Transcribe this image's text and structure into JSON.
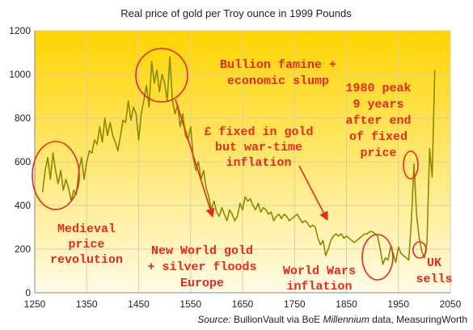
{
  "chart_data": {
    "type": "line",
    "title": "Real price of gold per Troy ounce in 1999 Pounds",
    "x": [
      1265,
      1270,
      1275,
      1280,
      1285,
      1290,
      1295,
      1300,
      1305,
      1310,
      1315,
      1320,
      1325,
      1330,
      1335,
      1340,
      1345,
      1350,
      1355,
      1360,
      1365,
      1370,
      1375,
      1380,
      1385,
      1390,
      1395,
      1400,
      1405,
      1410,
      1415,
      1420,
      1425,
      1430,
      1435,
      1440,
      1445,
      1450,
      1455,
      1460,
      1465,
      1470,
      1475,
      1480,
      1485,
      1490,
      1495,
      1500,
      1505,
      1510,
      1515,
      1520,
      1525,
      1530,
      1535,
      1540,
      1545,
      1550,
      1555,
      1560,
      1565,
      1570,
      1575,
      1580,
      1585,
      1590,
      1595,
      1600,
      1605,
      1610,
      1615,
      1620,
      1625,
      1630,
      1635,
      1640,
      1645,
      1650,
      1655,
      1660,
      1665,
      1670,
      1675,
      1680,
      1685,
      1690,
      1695,
      1700,
      1705,
      1710,
      1715,
      1720,
      1725,
      1730,
      1735,
      1740,
      1745,
      1750,
      1755,
      1760,
      1765,
      1770,
      1775,
      1780,
      1785,
      1790,
      1795,
      1800,
      1805,
      1810,
      1815,
      1820,
      1825,
      1830,
      1835,
      1840,
      1845,
      1850,
      1855,
      1860,
      1865,
      1870,
      1875,
      1880,
      1885,
      1890,
      1895,
      1900,
      1905,
      1910,
      1915,
      1920,
      1925,
      1930,
      1935,
      1940,
      1945,
      1950,
      1955,
      1960,
      1965,
      1970,
      1975,
      1980,
      1985,
      1990,
      1995,
      2000,
      2005,
      2010,
      2015,
      2020
    ],
    "series": [
      {
        "name": "Gold price",
        "color": "#8a8a00",
        "values": [
          460,
          560,
          620,
          520,
          640,
          560,
          500,
          560,
          470,
          520,
          480,
          420,
          470,
          450,
          560,
          620,
          520,
          600,
          650,
          640,
          700,
          680,
          760,
          690,
          800,
          720,
          780,
          720,
          690,
          650,
          720,
          790,
          780,
          880,
          790,
          850,
          820,
          700,
          820,
          880,
          950,
          850,
          1060,
          960,
          1020,
          920,
          1000,
          960,
          880,
          1080,
          880,
          820,
          860,
          760,
          820,
          720,
          700,
          760,
          620,
          560,
          600,
          520,
          560,
          480,
          440,
          380,
          420,
          370,
          350,
          390,
          360,
          330,
          380,
          360,
          330,
          350,
          410,
          380,
          440,
          420,
          430,
          400,
          380,
          410,
          370,
          390,
          380,
          360,
          370,
          330,
          350,
          360,
          340,
          360,
          350,
          330,
          340,
          350,
          360,
          340,
          320,
          330,
          320,
          300,
          310,
          300,
          250,
          220,
          240,
          170,
          200,
          240,
          260,
          270,
          260,
          270,
          250,
          260,
          250,
          240,
          230,
          240,
          250,
          260,
          270,
          270,
          280,
          280,
          270,
          260,
          200,
          130,
          160,
          150,
          210,
          180,
          140,
          210,
          180,
          170,
          160,
          150,
          330,
          590,
          360,
          250,
          190,
          160,
          230,
          660,
          530,
          1020
        ]
      }
    ],
    "xlim": [
      1250,
      2050
    ],
    "ylim": [
      0,
      1200
    ],
    "xticks": [
      1250,
      1350,
      1450,
      1550,
      1650,
      1750,
      1850,
      1950,
      2050
    ],
    "yticks": [
      0,
      200,
      400,
      600,
      800,
      1000,
      1200
    ],
    "grid": true,
    "annotations": [
      {
        "lines": [
          "Bullion famine +",
          "economic slump"
        ]
      },
      {
        "lines": [
          "£ fixed in gold",
          "but war-time",
          "inflation"
        ]
      },
      {
        "lines": [
          "1980 peak",
          "9 years",
          "after end",
          "of fixed",
          "price"
        ]
      },
      {
        "lines": [
          "Medieval",
          "price",
          "revolution"
        ]
      },
      {
        "lines": [
          "New World gold",
          "+ silver floods",
          "Europe"
        ]
      },
      {
        "lines": [
          "World Wars",
          "inflation"
        ]
      },
      {
        "lines": [
          "UK",
          "sells"
        ]
      }
    ],
    "source": {
      "label": "Source:",
      "text1": " BullionVault via BoE ",
      "text2": "Millennium",
      "text3": " data, MeasuringWorth"
    }
  }
}
